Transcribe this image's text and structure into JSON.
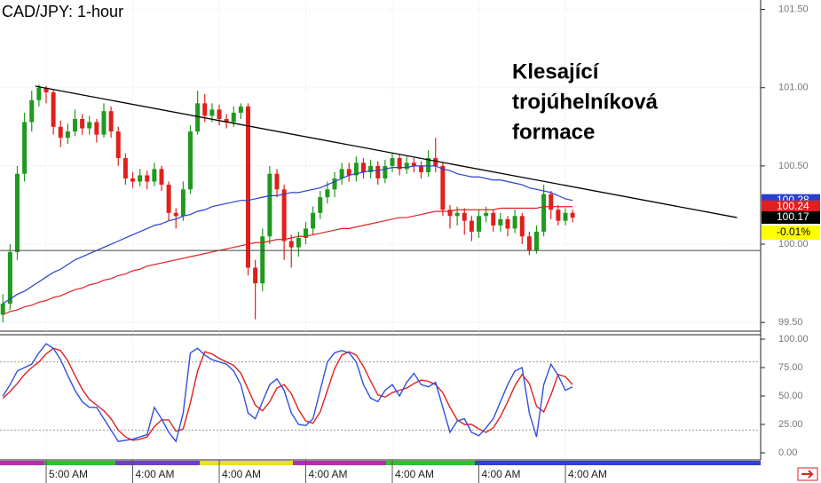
{
  "chart_data": [
    {
      "type": "candlestick",
      "title": "CAD/JPY: 1-hour",
      "annotation": [
        "Klesající",
        "trojúhelníková",
        "formace"
      ],
      "categories": [
        null,
        null,
        null,
        null,
        null,
        null,
        "5:00 AM",
        null,
        null,
        null,
        null,
        null,
        null,
        null,
        null,
        null,
        null,
        null,
        "4:00 AM",
        null,
        null,
        null,
        null,
        null,
        null,
        null,
        null,
        null,
        null,
        null,
        "4:00 AM",
        null,
        null,
        null,
        null,
        null,
        null,
        null,
        null,
        null,
        null,
        null,
        "4:00 AM",
        null,
        null,
        null,
        null,
        null,
        null,
        null,
        null,
        null,
        null,
        null,
        "4:00 AM",
        null,
        null,
        null,
        null,
        null,
        null,
        null,
        null,
        null,
        null,
        null,
        "4:00 AM",
        null,
        null,
        null,
        null,
        null,
        null,
        null,
        null,
        null,
        null,
        null,
        "4:00 AM",
        null
      ],
      "open": [
        99.55,
        99.62,
        99.95,
        100.45,
        100.78,
        100.92,
        101.0,
        100.97,
        100.75,
        100.68,
        100.72,
        100.8,
        100.74,
        100.78,
        100.7,
        100.85,
        100.72,
        100.55,
        100.42,
        100.4,
        100.44,
        100.4,
        100.48,
        100.38,
        100.2,
        100.18,
        100.35,
        100.72,
        100.9,
        100.82,
        100.86,
        100.8,
        100.78,
        100.84,
        100.88,
        99.85,
        99.75,
        100.05,
        100.45,
        100.35,
        100.02,
        99.98,
        100.04,
        100.1,
        100.2,
        100.3,
        100.35,
        100.42,
        100.48,
        100.44,
        100.52,
        100.46,
        100.5,
        100.42,
        100.5,
        100.55,
        100.48,
        100.52,
        100.5,
        100.46,
        100.55,
        100.5,
        100.22,
        100.18,
        100.2,
        100.15,
        100.08,
        100.18,
        100.2,
        100.12,
        100.16,
        100.1,
        100.18,
        100.05,
        99.96,
        100.08,
        100.32,
        100.22,
        100.15,
        100.2
      ],
      "high": [
        99.68,
        100.0,
        100.5,
        100.84,
        100.98,
        101.02,
        101.01,
        100.99,
        100.79,
        100.77,
        100.86,
        100.83,
        100.82,
        100.8,
        100.9,
        100.88,
        100.75,
        100.58,
        100.46,
        100.48,
        100.47,
        100.52,
        100.5,
        100.4,
        100.23,
        100.4,
        100.76,
        100.98,
        100.96,
        100.9,
        100.89,
        100.83,
        100.88,
        100.9,
        100.9,
        99.9,
        100.1,
        100.5,
        100.48,
        100.38,
        100.06,
        100.08,
        100.14,
        100.24,
        100.34,
        100.4,
        100.46,
        100.52,
        100.52,
        100.56,
        100.55,
        100.54,
        100.53,
        100.54,
        100.58,
        100.57,
        100.56,
        100.55,
        100.53,
        100.6,
        100.68,
        100.52,
        100.25,
        100.24,
        100.23,
        100.18,
        100.22,
        100.24,
        100.22,
        100.2,
        100.18,
        100.22,
        100.2,
        100.08,
        100.12,
        100.38,
        100.34,
        100.25,
        100.23,
        100.22
      ],
      "low": [
        99.5,
        99.58,
        99.9,
        100.4,
        100.72,
        100.88,
        100.9,
        100.7,
        100.62,
        100.64,
        100.69,
        100.7,
        100.7,
        100.65,
        100.68,
        100.68,
        100.5,
        100.38,
        100.36,
        100.37,
        100.35,
        100.37,
        100.34,
        100.15,
        100.1,
        100.15,
        100.32,
        100.7,
        100.78,
        100.78,
        100.76,
        100.74,
        100.75,
        100.8,
        99.8,
        99.52,
        99.7,
        100.0,
        100.3,
        99.9,
        99.85,
        99.92,
        100.0,
        100.06,
        100.16,
        100.26,
        100.3,
        100.38,
        100.4,
        100.4,
        100.42,
        100.42,
        100.38,
        100.39,
        100.46,
        100.44,
        100.45,
        100.46,
        100.42,
        100.43,
        100.46,
        100.18,
        100.1,
        100.12,
        100.06,
        100.02,
        100.04,
        100.14,
        100.08,
        100.08,
        100.05,
        100.07,
        100.0,
        99.93,
        99.94,
        100.05,
        100.16,
        100.12,
        100.12,
        100.14
      ],
      "close": [
        99.62,
        99.95,
        100.45,
        100.78,
        100.92,
        101.0,
        100.97,
        100.75,
        100.68,
        100.72,
        100.8,
        100.74,
        100.78,
        100.7,
        100.85,
        100.72,
        100.55,
        100.42,
        100.4,
        100.44,
        100.4,
        100.48,
        100.38,
        100.2,
        100.18,
        100.35,
        100.72,
        100.9,
        100.82,
        100.86,
        100.8,
        100.78,
        100.84,
        100.88,
        99.85,
        99.75,
        100.05,
        100.45,
        100.35,
        100.02,
        99.98,
        100.04,
        100.1,
        100.2,
        100.3,
        100.35,
        100.42,
        100.48,
        100.44,
        100.52,
        100.46,
        100.5,
        100.42,
        100.5,
        100.55,
        100.48,
        100.52,
        100.5,
        100.46,
        100.55,
        100.5,
        100.22,
        100.18,
        100.2,
        100.15,
        100.08,
        100.18,
        100.2,
        100.12,
        100.16,
        100.1,
        100.18,
        100.05,
        99.96,
        100.08,
        100.32,
        100.22,
        100.15,
        100.2,
        100.17
      ],
      "up_color": "#1f9a1f",
      "down_color": "#e0201c",
      "overlays": [
        {
          "color": "#2a3fd0",
          "values": [
            99.62,
            99.65,
            99.68,
            99.7,
            99.73,
            99.76,
            99.79,
            99.82,
            99.84,
            99.87,
            99.9,
            99.92,
            99.94,
            99.96,
            99.98,
            100.0,
            100.02,
            100.04,
            100.06,
            100.08,
            100.1,
            100.12,
            100.13,
            100.15,
            100.16,
            100.18,
            100.19,
            100.21,
            100.22,
            100.24,
            100.25,
            100.26,
            100.27,
            100.28,
            100.28,
            100.29,
            100.3,
            100.31,
            100.31,
            100.32,
            100.33,
            100.33,
            100.34,
            100.35,
            100.36,
            100.38,
            100.4,
            100.42,
            100.44,
            100.45,
            100.46,
            100.47,
            100.47,
            100.48,
            100.49,
            100.49,
            100.49,
            100.5,
            100.5,
            100.5,
            100.5,
            100.48,
            100.47,
            100.45,
            100.44,
            100.43,
            100.43,
            100.42,
            100.41,
            100.41,
            100.4,
            100.39,
            100.38,
            100.36,
            100.35,
            100.34,
            100.33,
            100.31,
            100.29,
            100.28
          ]
        },
        {
          "color": "#e02020",
          "values": [
            99.55,
            99.57,
            99.58,
            99.6,
            99.61,
            99.63,
            99.64,
            99.66,
            99.67,
            99.69,
            99.71,
            99.72,
            99.74,
            99.75,
            99.77,
            99.78,
            99.8,
            99.81,
            99.83,
            99.84,
            99.86,
            99.87,
            99.88,
            99.89,
            99.9,
            99.91,
            99.92,
            99.93,
            99.94,
            99.95,
            99.96,
            99.97,
            99.98,
            99.99,
            100.0,
            100.01,
            100.01,
            100.02,
            100.03,
            100.03,
            100.04,
            100.05,
            100.05,
            100.06,
            100.07,
            100.08,
            100.09,
            100.1,
            100.1,
            100.11,
            100.12,
            100.13,
            100.14,
            100.15,
            100.16,
            100.17,
            100.17,
            100.18,
            100.19,
            100.2,
            100.21,
            100.21,
            100.21,
            100.22,
            100.22,
            100.22,
            100.22,
            100.22,
            100.22,
            100.23,
            100.23,
            100.23,
            100.23,
            100.23,
            100.23,
            100.24,
            100.24,
            100.24,
            100.24,
            100.24
          ]
        }
      ],
      "trendline": {
        "x": [
          4.5,
          101.8
        ],
        "values": [
          101.01,
          100.17
        ],
        "color": "#000000"
      },
      "hline": {
        "value": 99.96,
        "color": "#444444"
      },
      "markers": [
        {
          "value": 100.28,
          "label": "100.28",
          "color": "#2a3fd0"
        },
        {
          "value": 100.24,
          "label": "100.24",
          "color": "#e02020"
        },
        {
          "value": 100.17,
          "label": "100.17",
          "color": "#000000"
        }
      ],
      "change": {
        "value": -0.01,
        "label": "-0.01%",
        "color": "#ffff00"
      },
      "ylim": [
        99.45,
        101.56
      ],
      "yticks": [
        {
          "value": 99.5,
          "label": "99.50"
        },
        {
          "value": 100,
          "label": "100.00"
        },
        {
          "value": 100.5,
          "label": "100.50"
        },
        {
          "value": 101,
          "label": "101.00"
        },
        {
          "value": 101.5,
          "label": "101.50"
        }
      ],
      "grid": true
    },
    {
      "type": "line",
      "series": [
        {
          "color": "#3050e0",
          "values": [
            50,
            60,
            72,
            75,
            78,
            88,
            96,
            92,
            82,
            68,
            55,
            45,
            40,
            40,
            30,
            20,
            10,
            11,
            12,
            14,
            16,
            40,
            30,
            18,
            10,
            35,
            88,
            92,
            86,
            82,
            80,
            78,
            72,
            60,
            35,
            30,
            45,
            60,
            65,
            55,
            35,
            25,
            24,
            30,
            55,
            80,
            88,
            90,
            88,
            80,
            60,
            48,
            45,
            55,
            60,
            50,
            62,
            70,
            60,
            58,
            62,
            40,
            18,
            28,
            30,
            18,
            15,
            22,
            30,
            45,
            60,
            72,
            75,
            35,
            14,
            60,
            78,
            68,
            55,
            58
          ]
        },
        {
          "color": "#e02020",
          "values": [
            48,
            54,
            61,
            69,
            75,
            80,
            87,
            92,
            90,
            81,
            68,
            56,
            47,
            42,
            37,
            30,
            20,
            14,
            11,
            12,
            14,
            23,
            29,
            29,
            19,
            21,
            44,
            72,
            89,
            87,
            83,
            80,
            77,
            70,
            56,
            42,
            37,
            45,
            57,
            60,
            52,
            38,
            28,
            26,
            36,
            55,
            74,
            86,
            89,
            86,
            76,
            63,
            51,
            49,
            53,
            55,
            57,
            61,
            64,
            63,
            60,
            53,
            40,
            29,
            25,
            25,
            21,
            18,
            22,
            32,
            45,
            59,
            69,
            61,
            41,
            36,
            51,
            69,
            67,
            60
          ]
        }
      ],
      "levels": [
        80,
        20
      ],
      "ylim": [
        -6.25,
        104.7
      ],
      "yticks": [
        {
          "value": 0,
          "label": "0.00"
        },
        {
          "value": 25,
          "label": "25.00"
        },
        {
          "value": 50,
          "label": "50.00"
        },
        {
          "value": 75,
          "label": "75.00"
        },
        {
          "value": 100,
          "label": "100.00"
        }
      ]
    }
  ]
}
